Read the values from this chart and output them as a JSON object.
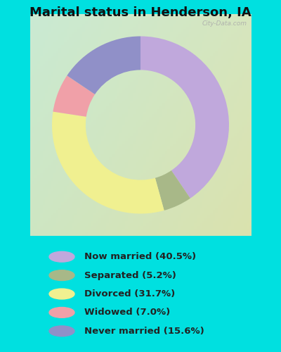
{
  "title": "Marital status in Henderson, IA",
  "title_fontsize": 13,
  "slices": [
    40.5,
    5.2,
    31.7,
    7.0,
    15.6
  ],
  "labels": [
    "Now married (40.5%)",
    "Separated (5.2%)",
    "Divorced (31.7%)",
    "Widowed (7.0%)",
    "Never married (15.6%)"
  ],
  "colors": [
    "#c0a8dc",
    "#a8b888",
    "#f0f090",
    "#f0a0a8",
    "#9090c8"
  ],
  "background_cyan": "#00e0e0",
  "chart_bg": "#d0ecd8",
  "watermark": "City-Data.com",
  "donut_width": 0.38,
  "start_angle": 90
}
